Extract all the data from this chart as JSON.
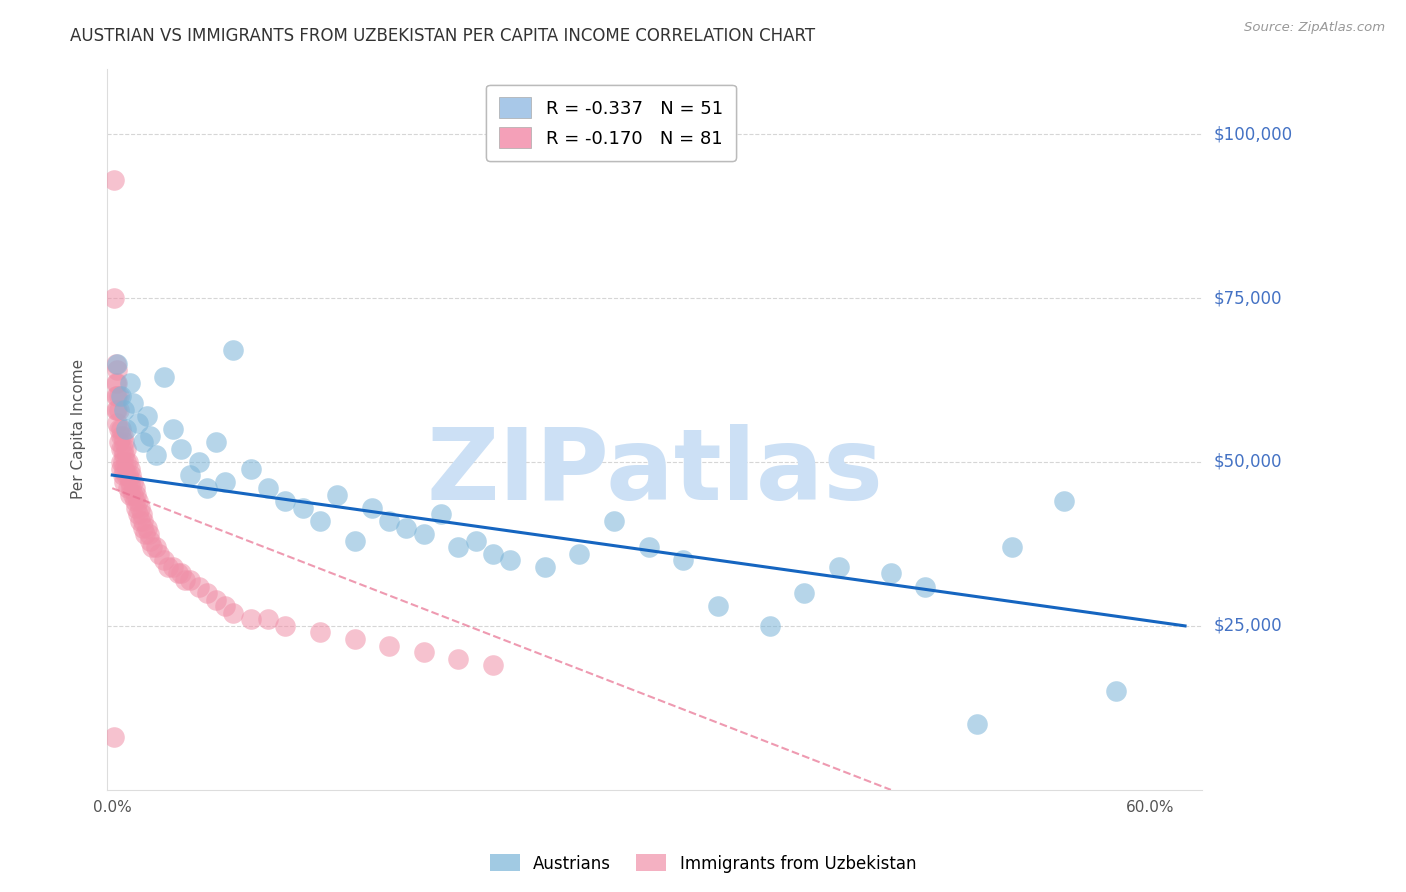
{
  "title": "AUSTRIAN VS IMMIGRANTS FROM UZBEKISTAN PER CAPITA INCOME CORRELATION CHART",
  "source": "Source: ZipAtlas.com",
  "ylabel": "Per Capita Income",
  "ytick_labels": [
    "$25,000",
    "$50,000",
    "$75,000",
    "$100,000"
  ],
  "ytick_values": [
    25000,
    50000,
    75000,
    100000
  ],
  "ymin": 0,
  "ymax": 110000,
  "xmin": -0.003,
  "xmax": 0.63,
  "legend_entries": [
    {
      "label": "R = -0.337   N = 51",
      "color": "#a8c8e8"
    },
    {
      "label": "R = -0.170   N = 81",
      "color": "#f4a0b8"
    }
  ],
  "austrians_x": [
    0.003,
    0.005,
    0.007,
    0.008,
    0.01,
    0.012,
    0.015,
    0.018,
    0.02,
    0.022,
    0.025,
    0.03,
    0.035,
    0.04,
    0.045,
    0.05,
    0.055,
    0.06,
    0.065,
    0.07,
    0.08,
    0.09,
    0.1,
    0.11,
    0.12,
    0.13,
    0.14,
    0.15,
    0.16,
    0.17,
    0.18,
    0.19,
    0.2,
    0.21,
    0.22,
    0.23,
    0.25,
    0.27,
    0.29,
    0.31,
    0.33,
    0.35,
    0.38,
    0.4,
    0.42,
    0.45,
    0.47,
    0.5,
    0.52,
    0.55,
    0.58
  ],
  "austrians_y": [
    65000,
    60000,
    58000,
    55000,
    62000,
    59000,
    56000,
    53000,
    57000,
    54000,
    51000,
    63000,
    55000,
    52000,
    48000,
    50000,
    46000,
    53000,
    47000,
    67000,
    49000,
    46000,
    44000,
    43000,
    41000,
    45000,
    38000,
    43000,
    41000,
    40000,
    39000,
    42000,
    37000,
    38000,
    36000,
    35000,
    34000,
    36000,
    41000,
    37000,
    35000,
    28000,
    25000,
    30000,
    34000,
    33000,
    31000,
    10000,
    37000,
    44000,
    15000
  ],
  "uzbek_x": [
    0.001,
    0.001,
    0.002,
    0.002,
    0.002,
    0.002,
    0.003,
    0.003,
    0.003,
    0.003,
    0.003,
    0.004,
    0.004,
    0.004,
    0.004,
    0.005,
    0.005,
    0.005,
    0.005,
    0.005,
    0.006,
    0.006,
    0.006,
    0.006,
    0.007,
    0.007,
    0.007,
    0.007,
    0.008,
    0.008,
    0.008,
    0.009,
    0.009,
    0.009,
    0.01,
    0.01,
    0.01,
    0.011,
    0.011,
    0.012,
    0.012,
    0.013,
    0.013,
    0.014,
    0.014,
    0.015,
    0.015,
    0.016,
    0.016,
    0.017,
    0.018,
    0.018,
    0.019,
    0.02,
    0.021,
    0.022,
    0.023,
    0.025,
    0.027,
    0.03,
    0.032,
    0.035,
    0.038,
    0.04,
    0.042,
    0.045,
    0.05,
    0.055,
    0.06,
    0.065,
    0.07,
    0.08,
    0.09,
    0.1,
    0.12,
    0.14,
    0.16,
    0.18,
    0.2,
    0.22,
    0.001
  ],
  "uzbek_y": [
    93000,
    75000,
    65000,
    62000,
    60000,
    58000,
    64000,
    62000,
    60000,
    58000,
    56000,
    60000,
    58000,
    55000,
    53000,
    55000,
    54000,
    52000,
    50000,
    49000,
    54000,
    52000,
    50000,
    48000,
    53000,
    51000,
    49000,
    47000,
    52000,
    50000,
    48000,
    50000,
    48000,
    46000,
    49000,
    47000,
    45000,
    48000,
    46000,
    47000,
    45000,
    46000,
    44000,
    45000,
    43000,
    44000,
    42000,
    43000,
    41000,
    42000,
    41000,
    40000,
    39000,
    40000,
    39000,
    38000,
    37000,
    37000,
    36000,
    35000,
    34000,
    34000,
    33000,
    33000,
    32000,
    32000,
    31000,
    30000,
    29000,
    28000,
    27000,
    26000,
    26000,
    25000,
    24000,
    23000,
    22000,
    21000,
    20000,
    19000,
    8000
  ],
  "austrians_color": "#7ab4d8",
  "uzbek_color": "#f090a8",
  "trendline_austrians_color": "#1565C0",
  "trendline_uzbek_color": "#e87090",
  "trendline_uzbek_linestyle": "dashed",
  "background_color": "#ffffff",
  "grid_color": "#cccccc",
  "title_color": "#333333",
  "axis_label_color": "#555555",
  "ytick_color": "#4472c4",
  "watermark_text": "ZIPatlas",
  "watermark_color": "#cce0f5"
}
